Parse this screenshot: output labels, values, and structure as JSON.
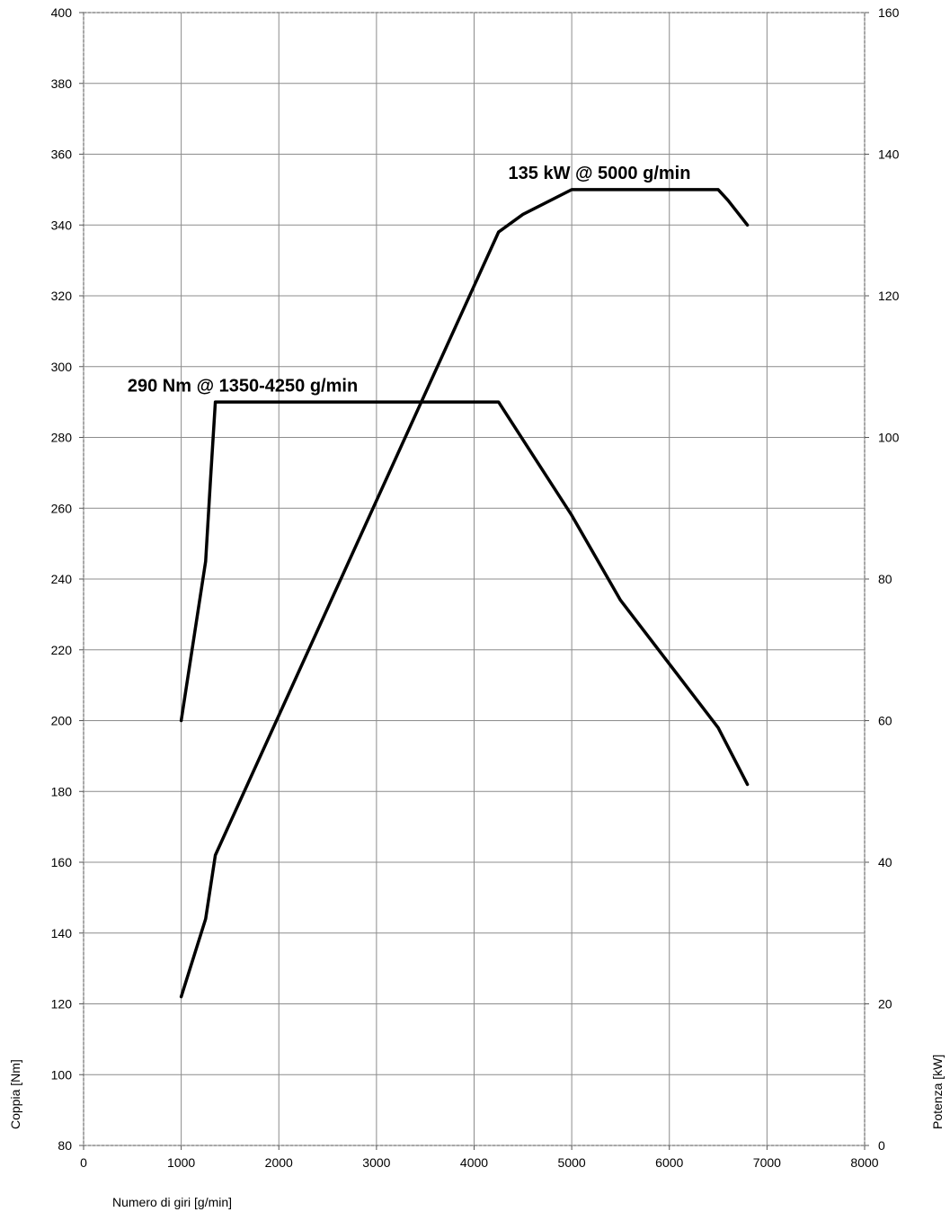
{
  "chart_data": {
    "type": "line",
    "title": "",
    "xlabel": "Numero di giri [g/min]",
    "ylabel_left": "Coppia [Nm]",
    "ylabel_right": "Potenza [kW]",
    "xlim": [
      0,
      8000
    ],
    "ylim_left": [
      80,
      400
    ],
    "ylim_right": [
      0,
      160
    ],
    "x_ticks": [
      "0",
      "1000",
      "2000",
      "3000",
      "4000",
      "5000",
      "6000",
      "7000",
      "8000"
    ],
    "y_left_ticks": [
      "80",
      "100",
      "120",
      "140",
      "160",
      "180",
      "200",
      "220",
      "240",
      "260",
      "280",
      "300",
      "320",
      "340",
      "360",
      "380",
      "400"
    ],
    "y_right_ticks": [
      "0",
      "20",
      "40",
      "60",
      "80",
      "100",
      "120",
      "140",
      "160"
    ],
    "grid": true,
    "series": [
      {
        "axis": "left",
        "color": "#000000",
        "x": [
          1000,
          1250,
          1300,
          1350,
          4250,
          5000,
          5500,
          6500,
          6800
        ],
        "y": [
          200,
          245,
          268,
          290,
          290,
          258,
          234,
          198,
          182
        ]
      },
      {
        "axis": "right",
        "color": "#000000",
        "x": [
          1000,
          1250,
          1350,
          4250,
          4500,
          5000,
          6500,
          6600,
          6800
        ],
        "y": [
          21,
          32,
          41,
          129,
          131.5,
          135,
          135,
          133.5,
          130
        ]
      }
    ],
    "annotations": [
      {
        "text": "290 Nm @ 1350-4250 g/min",
        "x": 450,
        "y": 293,
        "axis": "left"
      },
      {
        "text": "135 kW @ 5000 g/min",
        "x": 4350,
        "y": 136.5,
        "axis": "right"
      }
    ]
  }
}
